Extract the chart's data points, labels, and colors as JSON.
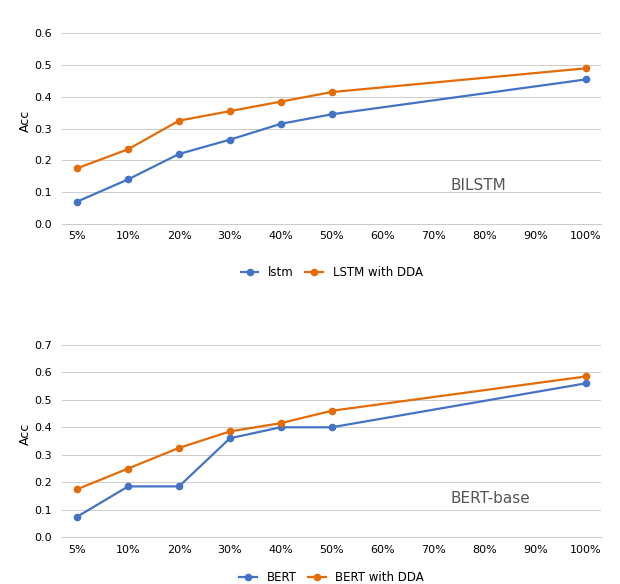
{
  "x_labels": [
    "5%",
    "10%",
    "20%",
    "30%",
    "40%",
    "50%",
    "60%",
    "70%",
    "80%",
    "90%",
    "100%"
  ],
  "bilstm": {
    "lstm": [
      0.07,
      0.14,
      0.22,
      0.265,
      0.315,
      0.345,
      null,
      null,
      null,
      null,
      0.455
    ],
    "lstm_dda": [
      0.175,
      0.235,
      0.325,
      0.355,
      0.385,
      0.415,
      null,
      null,
      null,
      null,
      0.49
    ],
    "ylabel": "Acc",
    "ylim": [
      0,
      0.65
    ],
    "yticks": [
      0,
      0.1,
      0.2,
      0.3,
      0.4,
      0.5,
      0.6
    ],
    "annotation": "BILSTM",
    "legend_lstm": "lstm",
    "legend_lstm_dda": "LSTM with DDA"
  },
  "bert": {
    "bert": [
      0.075,
      0.185,
      0.185,
      0.36,
      0.4,
      0.4,
      null,
      null,
      null,
      null,
      0.56
    ],
    "bert_dda": [
      0.175,
      0.25,
      0.325,
      0.385,
      0.415,
      0.46,
      null,
      null,
      null,
      null,
      0.585
    ],
    "ylabel": "Acc",
    "ylim": [
      0,
      0.75
    ],
    "yticks": [
      0,
      0.1,
      0.2,
      0.3,
      0.4,
      0.5,
      0.6,
      0.7
    ],
    "annotation": "BERT-base",
    "legend_bert": "BERT",
    "legend_bert_dda": "BERT with DDA"
  },
  "blue_color": "#4472C4",
  "orange_color": "#E36C09",
  "marker": "o",
  "linewidth": 1.6,
  "markersize": 4.5,
  "background_color": "#ffffff",
  "grid_color": "#cccccc",
  "font_size_label": 9,
  "font_size_tick": 8,
  "font_size_legend": 8.5,
  "font_size_annotation": 11
}
